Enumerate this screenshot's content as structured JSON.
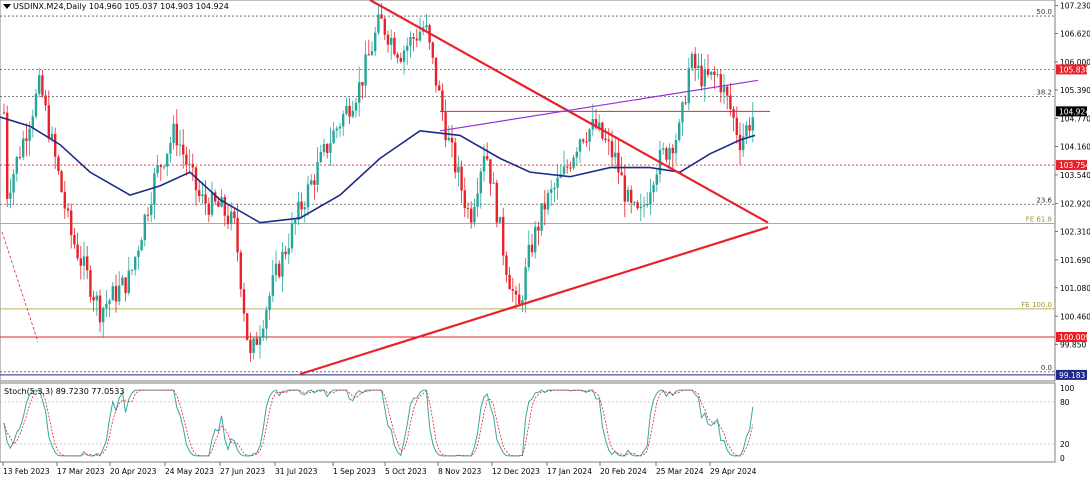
{
  "header": {
    "symbol_line": "USDINX.M24,Daily  104.960 105.037 104.903 104.924",
    "triangle_icon": "dropdown-triangle-icon"
  },
  "chart_data": {
    "type": "candlestick",
    "title": "USDINX.M24,Daily",
    "ohlc_current": {
      "open": 104.96,
      "high": 105.037,
      "low": 104.903,
      "close": 104.924
    },
    "price_axis": {
      "ticks": [
        "107.230",
        "106.620",
        "106.000",
        "105.390",
        "104.770",
        "104.160",
        "103.540",
        "102.920",
        "102.310",
        "101.690",
        "101.080",
        "100.460",
        "99.850"
      ],
      "range": [
        99.183,
        107.35
      ]
    },
    "time_axis": {
      "labels": [
        "13 Feb 2023",
        "17 Mar 2023",
        "20 Apr 2023",
        "24 May 2023",
        "27 Jun 2023",
        "31 Jul 2023",
        "1 Sep 2023",
        "5 Oct 2023",
        "8 Nov 2023",
        "12 Dec 2023",
        "17 Jan 2024",
        "20 Feb 2024",
        "25 Mar 2024",
        "29 Apr 2024"
      ]
    },
    "price_tags": [
      {
        "value": "105.838",
        "color": "#e8222a"
      },
      {
        "value": "104.924",
        "color": "#000000"
      },
      {
        "value": "103.754",
        "color": "#e8222a"
      },
      {
        "value": "100.009",
        "color": "#e8222a"
      },
      {
        "value": "99.183",
        "color": "#1c2b8a"
      }
    ],
    "fib_levels": [
      {
        "label": "50.0",
        "price": 107.0
      },
      {
        "label": "38.2",
        "price": 105.25
      },
      {
        "label": "23.6",
        "price": 102.9
      },
      {
        "label": "0.0",
        "price": 99.25
      }
    ],
    "fe_levels": [
      {
        "label": "FE 61.8",
        "price": 102.48
      },
      {
        "label": "FE 100.0",
        "price": 100.62
      }
    ],
    "horizontal_lines": [
      {
        "price": 105.838,
        "color": "#e8222a",
        "style": "dotted"
      },
      {
        "price": 104.924,
        "color": "#e8222a",
        "style": "solid"
      },
      {
        "price": 103.754,
        "color": "#e8222a",
        "style": "dotted"
      },
      {
        "price": 100.009,
        "color": "#e8222a",
        "style": "solid"
      },
      {
        "price": 99.183,
        "color": "#1c2b8a",
        "style": "solid"
      }
    ],
    "trendlines": [
      {
        "name": "falling",
        "color": "#e8222a",
        "from": [
          370,
          107.35
        ],
        "to": [
          768,
          102.5
        ]
      },
      {
        "name": "rising",
        "color": "#e8222a",
        "from": [
          300,
          99.2
        ],
        "to": [
          768,
          102.4
        ]
      },
      {
        "name": "channel",
        "color": "#9b30d9",
        "from": [
          440,
          104.5
        ],
        "to": [
          758,
          105.6
        ]
      }
    ],
    "series": [
      {
        "kind": "candles",
        "up_color": "#26a69a",
        "down_color": "#e8222a"
      },
      {
        "kind": "moving-average",
        "color": "#1c2b8a"
      }
    ],
    "key_points": [
      [
        5,
        103.0
      ],
      [
        40,
        105.5
      ],
      [
        70,
        102.3
      ],
      [
        100,
        100.6
      ],
      [
        130,
        101.3
      ],
      [
        155,
        103.5
      ],
      [
        175,
        104.5
      ],
      [
        200,
        103.0
      ],
      [
        222,
        102.8
      ],
      [
        235,
        102.4
      ],
      [
        250,
        99.5
      ],
      [
        275,
        101.3
      ],
      [
        300,
        102.8
      ],
      [
        330,
        104.3
      ],
      [
        360,
        105.5
      ],
      [
        380,
        106.9
      ],
      [
        400,
        106.2
      ],
      [
        425,
        106.8
      ],
      [
        448,
        104.3
      ],
      [
        470,
        102.6
      ],
      [
        485,
        104.2
      ],
      [
        495,
        103.0
      ],
      [
        505,
        101.7
      ],
      [
        518,
        100.5
      ],
      [
        530,
        101.9
      ],
      [
        545,
        102.9
      ],
      [
        565,
        103.6
      ],
      [
        580,
        104.4
      ],
      [
        595,
        104.6
      ],
      [
        615,
        103.9
      ],
      [
        630,
        102.8
      ],
      [
        640,
        102.6
      ],
      [
        655,
        103.7
      ],
      [
        670,
        104.2
      ],
      [
        680,
        104.5
      ],
      [
        690,
        106.0
      ],
      [
        705,
        105.6
      ],
      [
        718,
        105.7
      ],
      [
        730,
        105.0
      ],
      [
        740,
        104.3
      ],
      [
        755,
        104.9
      ]
    ],
    "ma_points": [
      [
        0,
        104.8
      ],
      [
        30,
        104.6
      ],
      [
        60,
        104.2
      ],
      [
        90,
        103.6
      ],
      [
        130,
        103.1
      ],
      [
        160,
        103.3
      ],
      [
        190,
        103.6
      ],
      [
        220,
        103.0
      ],
      [
        260,
        102.5
      ],
      [
        300,
        102.6
      ],
      [
        340,
        103.1
      ],
      [
        380,
        103.9
      ],
      [
        420,
        104.5
      ],
      [
        460,
        104.4
      ],
      [
        500,
        103.9
      ],
      [
        530,
        103.6
      ],
      [
        570,
        103.5
      ],
      [
        610,
        103.7
      ],
      [
        650,
        103.7
      ],
      [
        680,
        103.6
      ],
      [
        710,
        104.0
      ],
      [
        740,
        104.3
      ],
      [
        755,
        104.4
      ]
    ],
    "stochastic": {
      "label": "Stoch(5,3,3) 89.7230 77.0533",
      "axis_ticks": [
        "100",
        "80",
        "20",
        "0"
      ],
      "main_color": "#3aa6a0",
      "signal_color": "#e8222a"
    }
  }
}
